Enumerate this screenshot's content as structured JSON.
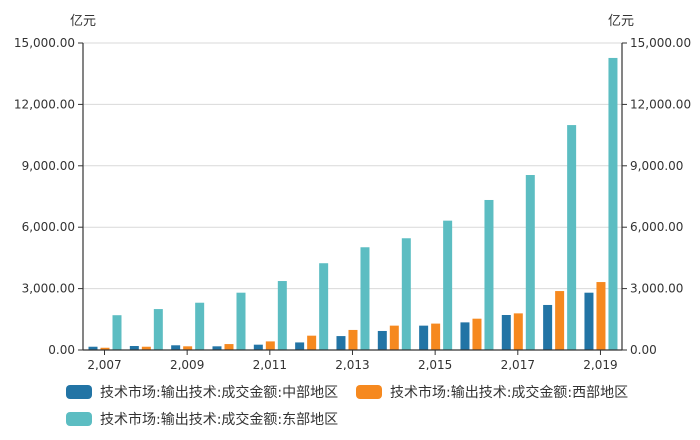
{
  "chart_data": {
    "type": "bar",
    "title": "",
    "xlabel": "",
    "ylabel": "亿元",
    "y2label": "亿元",
    "ylim": [
      0,
      15000
    ],
    "yticks": [
      "0.00",
      "3,000.00",
      "6,000.00",
      "9,000.00",
      "12,000.00",
      "15,000.00"
    ],
    "xtick_labels": [
      "2,007",
      "2,009",
      "2,011",
      "2,013",
      "2,015",
      "2,017",
      "2,019"
    ],
    "categories": [
      "2007",
      "2008",
      "2009",
      "2010",
      "2011",
      "2012",
      "2013",
      "2014",
      "2015",
      "2016",
      "2017",
      "2018",
      "2019"
    ],
    "grid": true,
    "legend_position": "bottom",
    "series": [
      {
        "name": "技术市场:输出技术:成交金额:中部地区",
        "color": "#2274a5",
        "values": [
          160,
          195,
          230,
          180,
          260,
          370,
          680,
          930,
          1190,
          1350,
          1710,
          2200,
          2800
        ]
      },
      {
        "name": "技术市场:输出技术:成交金额:西部地区",
        "color": "#f6891f",
        "values": [
          110,
          160,
          180,
          290,
          420,
          700,
          980,
          1190,
          1290,
          1530,
          1790,
          2880,
          3320
        ]
      },
      {
        "name": "技术市场:输出技术:成交金额:东部地区",
        "color": "#5cbdc2",
        "values": [
          1700,
          2000,
          2310,
          2800,
          3370,
          4240,
          5020,
          5460,
          6320,
          7330,
          8550,
          10990,
          14270
        ]
      }
    ]
  },
  "axes": {
    "left_unit": "亿元",
    "right_unit": "亿元"
  },
  "legend": {
    "items": [
      {
        "label": "技术市场:输出技术:成交金额:中部地区",
        "color": "#2274a5"
      },
      {
        "label": "技术市场:输出技术:成交金额:西部地区",
        "color": "#f6891f"
      },
      {
        "label": "技术市场:输出技术:成交金额:东部地区",
        "color": "#5cbdc2"
      }
    ]
  }
}
